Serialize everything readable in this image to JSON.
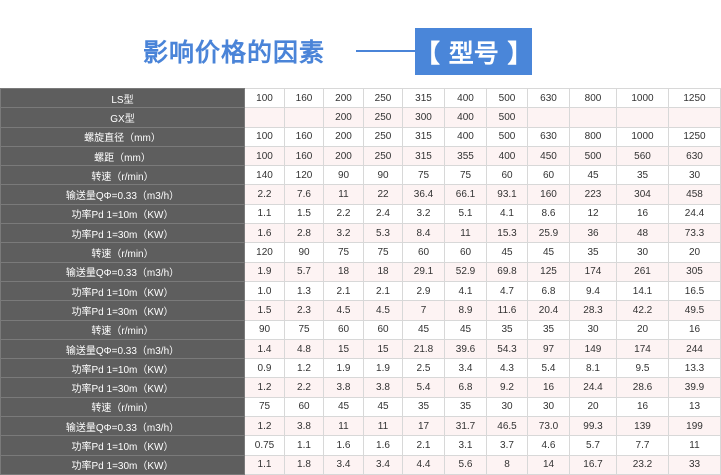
{
  "header": {
    "title": "影响价格的因素",
    "badge": "【 型号 】",
    "accent": "#4a86d9"
  },
  "table": {
    "rows": [
      {
        "label": "LS型",
        "values": [
          "100",
          "160",
          "200",
          "250",
          "315",
          "400",
          "500",
          "630",
          "800",
          "1000",
          "1250"
        ]
      },
      {
        "label": "GX型",
        "values": [
          "",
          "",
          "200",
          "250",
          "300",
          "400",
          "500",
          "",
          "",
          "",
          ""
        ]
      },
      {
        "label": "螺旋直径（mm）",
        "values": [
          "100",
          "160",
          "200",
          "250",
          "315",
          "400",
          "500",
          "630",
          "800",
          "1000",
          "1250"
        ]
      },
      {
        "label": "螺距（mm）",
        "values": [
          "100",
          "160",
          "200",
          "250",
          "315",
          "355",
          "400",
          "450",
          "500",
          "560",
          "630"
        ]
      },
      {
        "label": "转速（r/min）",
        "values": [
          "140",
          "120",
          "90",
          "90",
          "75",
          "75",
          "60",
          "60",
          "45",
          "35",
          "30"
        ]
      },
      {
        "label": "输送量QΦ=0.33（m3/h）",
        "values": [
          "2.2",
          "7.6",
          "11",
          "22",
          "36.4",
          "66.1",
          "93.1",
          "160",
          "223",
          "304",
          "458"
        ]
      },
      {
        "label": "功率Pd 1=10m（KW）",
        "values": [
          "1.1",
          "1.5",
          "2.2",
          "2.4",
          "3.2",
          "5.1",
          "4.1",
          "8.6",
          "12",
          "16",
          "24.4"
        ]
      },
      {
        "label": "功率Pd 1=30m（KW）",
        "values": [
          "1.6",
          "2.8",
          "3.2",
          "5.3",
          "8.4",
          "11",
          "15.3",
          "25.9",
          "36",
          "48",
          "73.3"
        ]
      },
      {
        "label": "转速（r/min）",
        "values": [
          "120",
          "90",
          "75",
          "75",
          "60",
          "60",
          "45",
          "45",
          "35",
          "30",
          "20"
        ]
      },
      {
        "label": "输送量QΦ=0.33（m3/h）",
        "values": [
          "1.9",
          "5.7",
          "18",
          "18",
          "29.1",
          "52.9",
          "69.8",
          "125",
          "174",
          "261",
          "305"
        ]
      },
      {
        "label": "功率Pd 1=10m（KW）",
        "values": [
          "1.0",
          "1.3",
          "2.1",
          "2.1",
          "2.9",
          "4.1",
          "4.7",
          "6.8",
          "9.4",
          "14.1",
          "16.5"
        ]
      },
      {
        "label": "功率Pd 1=30m（KW）",
        "values": [
          "1.5",
          "2.3",
          "4.5",
          "4.5",
          "7",
          "8.9",
          "11.6",
          "20.4",
          "28.3",
          "42.2",
          "49.5"
        ]
      },
      {
        "label": "转速（r/min）",
        "values": [
          "90",
          "75",
          "60",
          "60",
          "45",
          "45",
          "35",
          "35",
          "30",
          "20",
          "16"
        ]
      },
      {
        "label": "输送量QΦ=0.33（m3/h）",
        "values": [
          "1.4",
          "4.8",
          "15",
          "15",
          "21.8",
          "39.6",
          "54.3",
          "97",
          "149",
          "174",
          "244"
        ]
      },
      {
        "label": "功率Pd 1=10m（KW）",
        "values": [
          "0.9",
          "1.2",
          "1.9",
          "1.9",
          "2.5",
          "3.4",
          "4.3",
          "5.4",
          "8.1",
          "9.5",
          "13.3"
        ]
      },
      {
        "label": "功率Pd 1=30m（KW）",
        "values": [
          "1.2",
          "2.2",
          "3.8",
          "3.8",
          "5.4",
          "6.8",
          "9.2",
          "16",
          "24.4",
          "28.6",
          "39.9"
        ]
      },
      {
        "label": "转速（r/min）",
        "values": [
          "75",
          "60",
          "45",
          "45",
          "35",
          "35",
          "30",
          "30",
          "20",
          "16",
          "13"
        ]
      },
      {
        "label": "输送量QΦ=0.33（m3/h）",
        "values": [
          "1.2",
          "3.8",
          "11",
          "11",
          "17",
          "31.7",
          "46.5",
          "73.0",
          "99.3",
          "139",
          "199"
        ]
      },
      {
        "label": "功率Pd 1=10m（KW）",
        "values": [
          "0.75",
          "1.1",
          "1.6",
          "1.6",
          "2.1",
          "3.1",
          "3.7",
          "4.6",
          "5.7",
          "7.7",
          "11"
        ]
      },
      {
        "label": "功率Pd 1=30m（KW）",
        "values": [
          "1.1",
          "1.8",
          "3.4",
          "3.4",
          "4.4",
          "5.6",
          "8",
          "14",
          "16.7",
          "23.2",
          "33"
        ]
      }
    ]
  }
}
